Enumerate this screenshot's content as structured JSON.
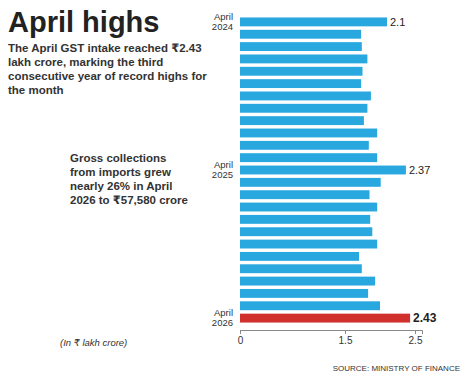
{
  "chart_data": {
    "type": "bar",
    "orientation": "horizontal",
    "title": "April highs",
    "subtitle": "The April GST intake reached ₹2.43 lakh crore, marking the third consecutive year of record highs for the month",
    "annotations": [
      "Gross collections from imports grew nearly 26% in April 2026 to ₹57,580 crore"
    ],
    "x_label": "(In ₹ lakh crore)",
    "source": "SOURCE: MINISTRY OF FINANCE",
    "categories": [
      "April 2024",
      null,
      null,
      null,
      null,
      null,
      null,
      null,
      null,
      null,
      null,
      null,
      "April 2025",
      null,
      null,
      null,
      null,
      null,
      null,
      null,
      null,
      null,
      null,
      null,
      "April 2026"
    ],
    "values": [
      2.1,
      1.73,
      1.74,
      1.82,
      1.75,
      1.73,
      1.87,
      1.82,
      1.77,
      1.96,
      1.84,
      1.96,
      2.37,
      2.01,
      1.85,
      1.96,
      1.86,
      1.89,
      1.96,
      1.7,
      1.74,
      1.93,
      1.83,
      2.0,
      2.43
    ],
    "value_labels": [
      "2.1",
      null,
      null,
      null,
      null,
      null,
      null,
      null,
      null,
      null,
      null,
      null,
      "2.37",
      null,
      null,
      null,
      null,
      null,
      null,
      null,
      null,
      null,
      null,
      null,
      "2.43"
    ],
    "colors": [
      "#29a8e0",
      "#29a8e0",
      "#29a8e0",
      "#29a8e0",
      "#29a8e0",
      "#29a8e0",
      "#29a8e0",
      "#29a8e0",
      "#29a8e0",
      "#29a8e0",
      "#29a8e0",
      "#29a8e0",
      "#29a8e0",
      "#29a8e0",
      "#29a8e0",
      "#29a8e0",
      "#29a8e0",
      "#29a8e0",
      "#29a8e0",
      "#29a8e0",
      "#29a8e0",
      "#29a8e0",
      "#29a8e0",
      "#29a8e0",
      "#d0312d"
    ],
    "xlim": [
      0,
      2.6
    ],
    "xticks": [
      0,
      1.5,
      2.5
    ],
    "grid": false,
    "data_labels": true
  }
}
